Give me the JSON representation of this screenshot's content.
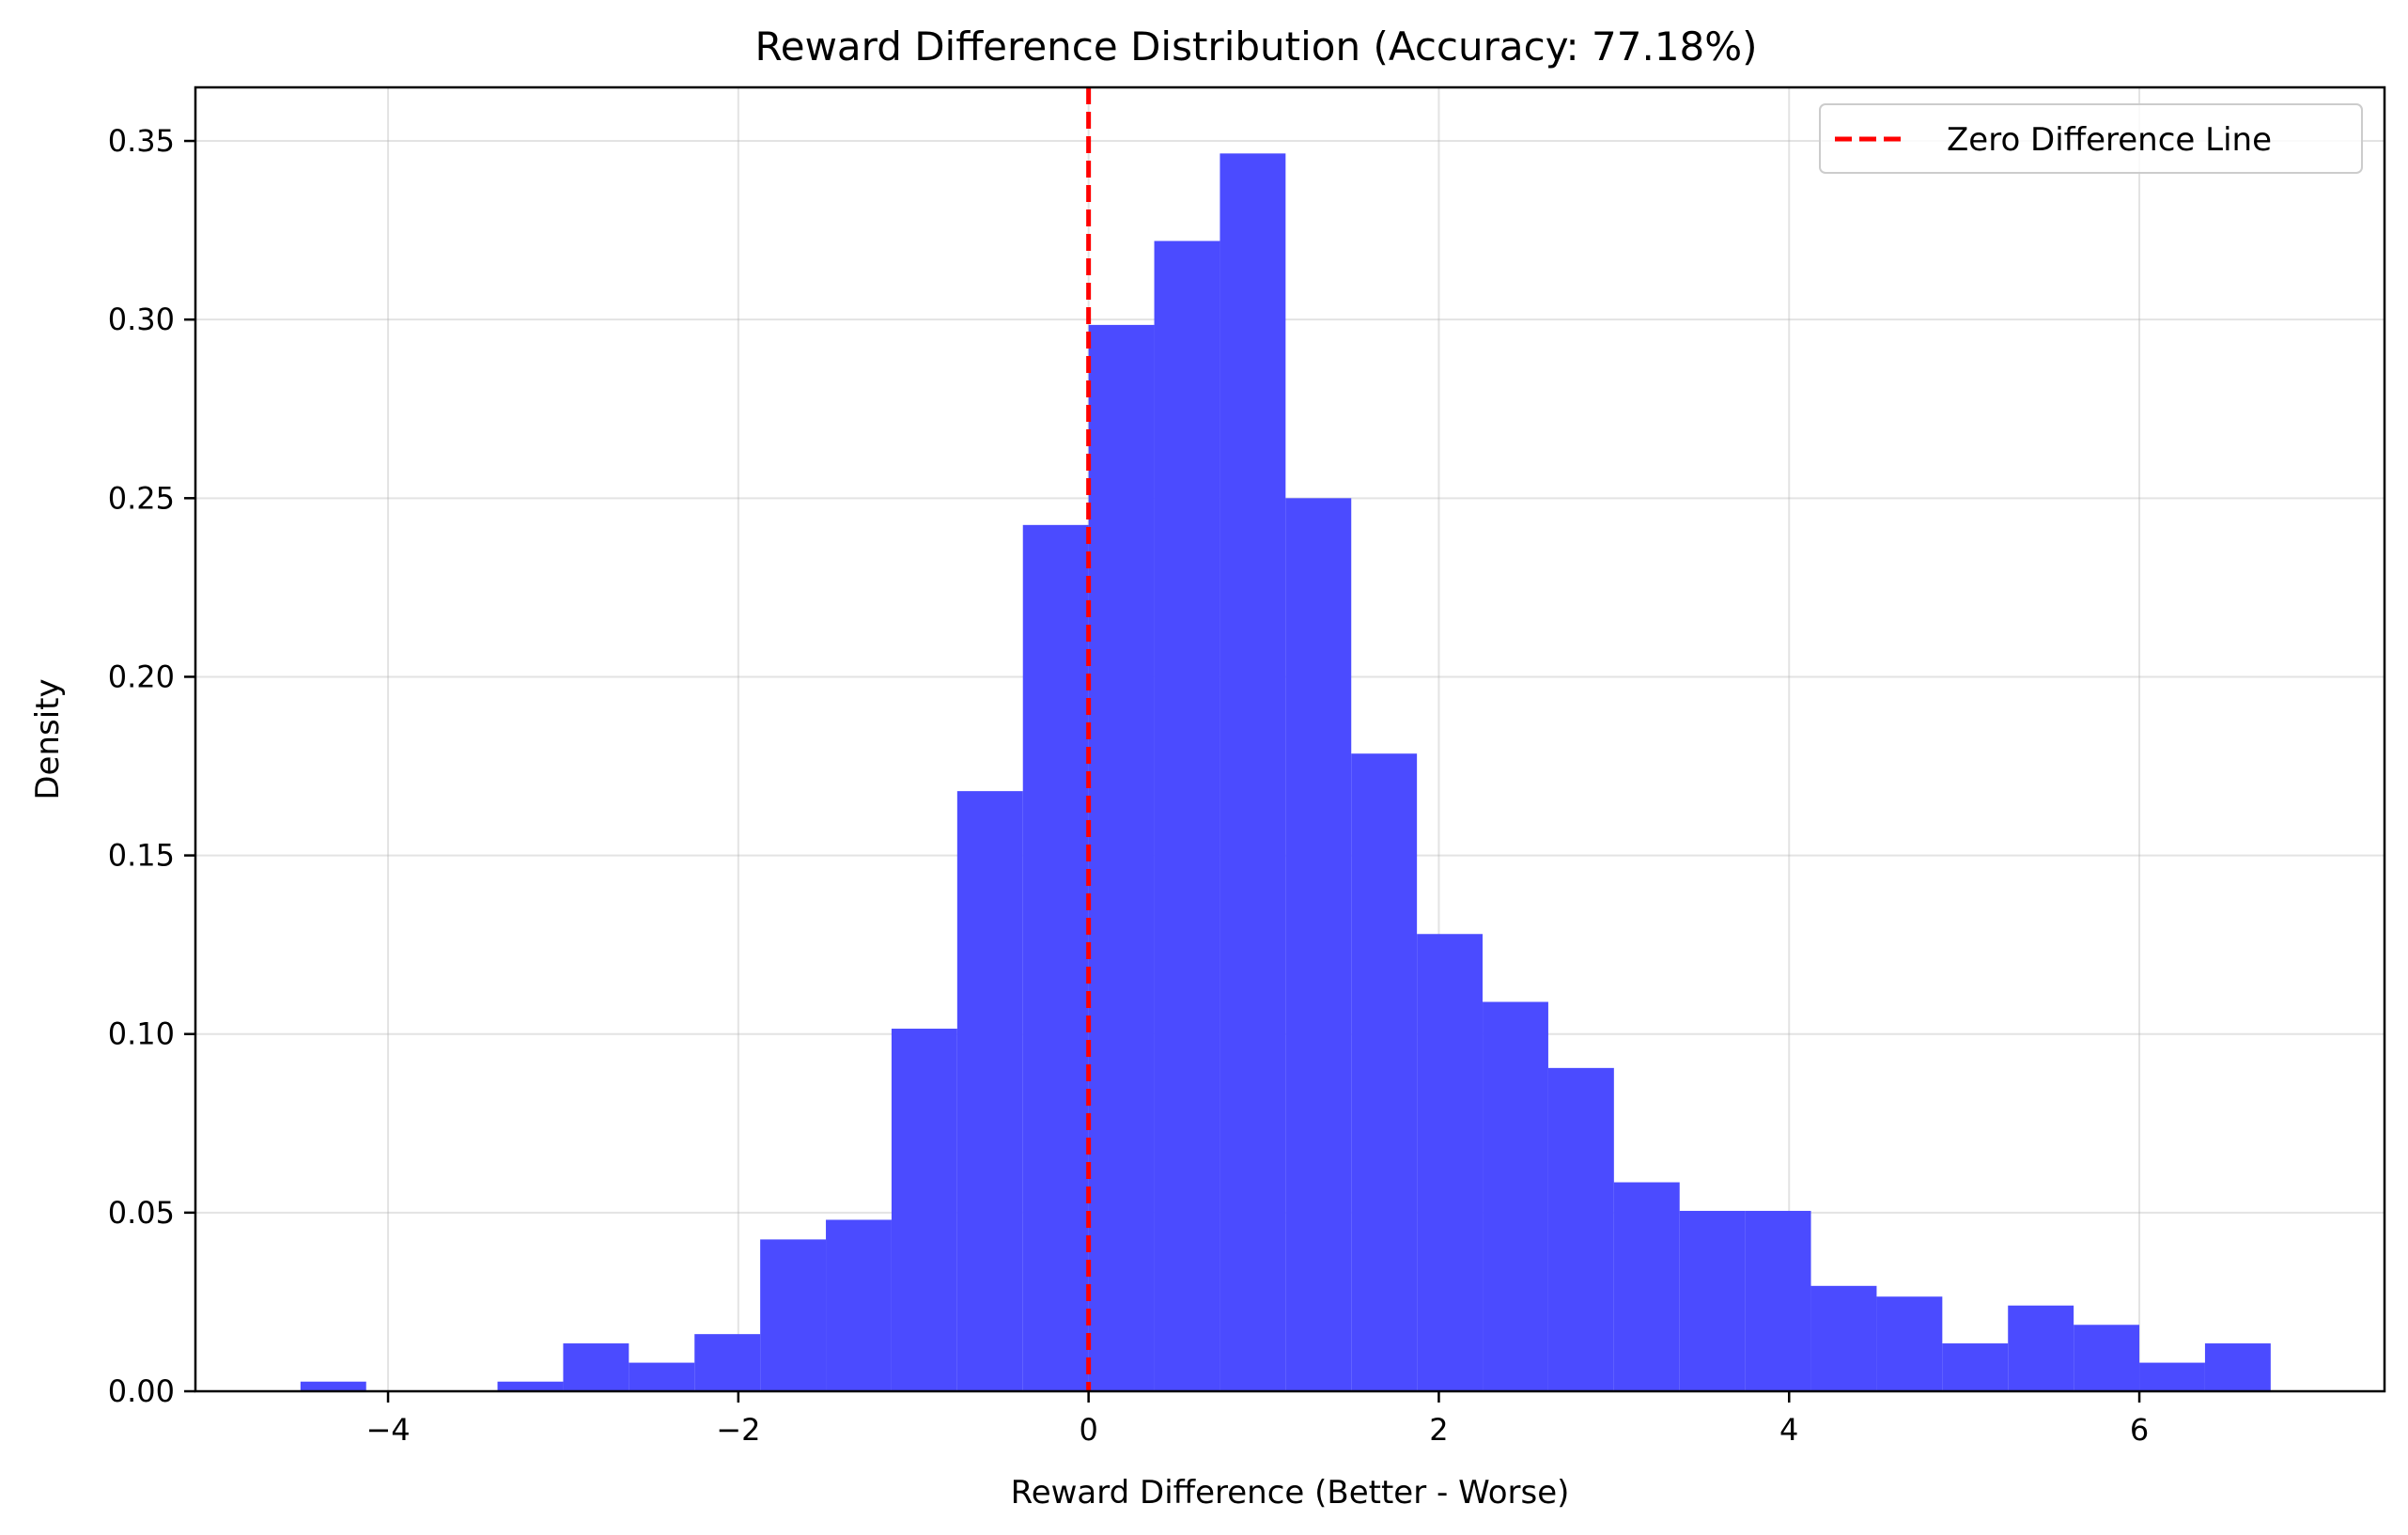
{
  "chart_data": {
    "type": "bar",
    "subtype": "histogram",
    "title": "Reward Difference Distribution (Accuracy: 77.18%)",
    "xlabel": "Reward Difference (Better - Worse)",
    "ylabel": "Density",
    "xlim": [
      -5.1,
      7.4
    ],
    "ylim": [
      0,
      0.365
    ],
    "xticks": [
      -4,
      -2,
      0,
      2,
      4,
      6
    ],
    "xtick_labels": [
      "−4",
      "−2",
      "0",
      "2",
      "4",
      "6"
    ],
    "yticks": [
      0.0,
      0.05,
      0.1,
      0.15,
      0.2,
      0.25,
      0.3,
      0.35
    ],
    "ytick_labels": [
      "0.00",
      "0.05",
      "0.10",
      "0.15",
      "0.20",
      "0.25",
      "0.30",
      "0.35"
    ],
    "grid": true,
    "legend_position": "top-right",
    "bar_color": "#4b4bff",
    "bin_edges": [
      -4.5,
      -4.125,
      -3.75,
      -3.375,
      -3.0,
      -2.625,
      -2.25,
      -1.875,
      -1.5,
      -1.125,
      -0.75,
      -0.375,
      0.0,
      0.375,
      0.75,
      1.125,
      1.5,
      1.875,
      2.25,
      2.625,
      3.0,
      3.375,
      3.75,
      4.125,
      4.5,
      4.875,
      5.25,
      5.625,
      6.0,
      6.375,
      6.75
    ],
    "values": [
      0.0027,
      0.0,
      0.0,
      0.0027,
      0.0134,
      0.008,
      0.016,
      0.0425,
      0.048,
      0.1015,
      0.168,
      0.2425,
      0.2985,
      0.322,
      0.3465,
      0.25,
      0.1785,
      0.128,
      0.109,
      0.0905,
      0.0585,
      0.0505,
      0.0505,
      0.0295,
      0.0265,
      0.0134,
      0.024,
      0.0186,
      0.008,
      0.0134
    ],
    "reference_line": {
      "x": 0,
      "label": "Zero Difference Line",
      "color": "#ff0000",
      "style": "dashed"
    }
  }
}
